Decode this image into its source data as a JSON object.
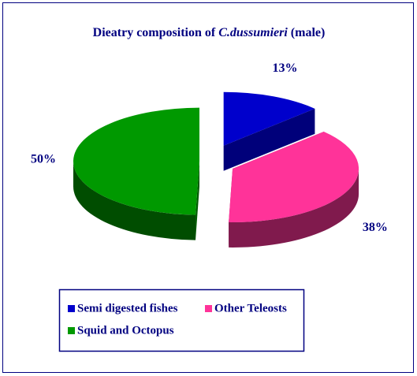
{
  "chart_data": {
    "type": "pie",
    "title": [
      "Dieatry composition of ",
      "C.dussumieri",
      " (male)"
    ],
    "categories": [
      "Semi digested fishes",
      "Other Teleosts",
      "Squid and Octopus"
    ],
    "values": [
      13,
      38,
      50
    ],
    "value_labels": [
      "13%",
      "38%",
      "50%"
    ],
    "colors": [
      "#0000cc",
      "#ff3399",
      "#009900"
    ],
    "legend": "bottom"
  }
}
